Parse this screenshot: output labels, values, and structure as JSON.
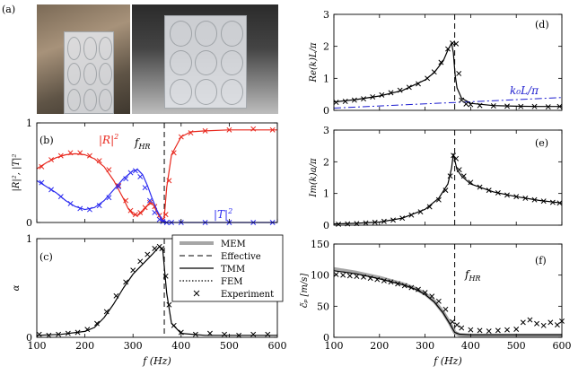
{
  "panel_labels": {
    "a": "(a)",
    "b": "(b)",
    "c": "(c)",
    "d": "(d)",
    "e": "(e)",
    "f": "(f)"
  },
  "photos": {
    "left": "photo-prototype-in-tube",
    "right": "photo-prototype-block"
  },
  "annotations": {
    "f_hr_main": "f",
    "f_hr_sub": "HR",
    "R2_main": "|R|",
    "R2_sup": "2",
    "T2_main": "|T|",
    "T2_sup": "2",
    "k0_label": "k₀L/π"
  },
  "legend": {
    "items": [
      {
        "label": "MEM",
        "style": "thick-gray"
      },
      {
        "label": "Effective",
        "style": "dashed"
      },
      {
        "label": "TMM",
        "style": "solid"
      },
      {
        "label": "FEM",
        "style": "dotted"
      },
      {
        "label": "Experiment",
        "style": "cross"
      }
    ]
  },
  "colors": {
    "red": "#e8281e",
    "blue": "#2b2bf0",
    "gray": "#a6a6a6",
    "black": "#000000",
    "k0_blue": "#1d1dcf"
  },
  "chart_data": [
    {
      "id": "b",
      "type": "line",
      "ylabel": "|R|², |T|²",
      "xlabel": "",
      "xlim": [
        100,
        600
      ],
      "ylim": [
        0,
        1
      ],
      "xticks": [
        100,
        200,
        300,
        400,
        500,
        600
      ],
      "yticks": [
        0,
        1
      ],
      "xticklabels": [
        "",
        "",
        "",
        "",
        "",
        ""
      ],
      "yticklabels": [
        "0",
        "1"
      ],
      "vline": 365,
      "series": [
        {
          "name": "|R|² model",
          "color": "red",
          "x": [
            100,
            120,
            140,
            160,
            180,
            200,
            220,
            240,
            260,
            280,
            290,
            300,
            310,
            320,
            330,
            340,
            350,
            360,
            365,
            370,
            380,
            400,
            420,
            450,
            500,
            550,
            600
          ],
          "y": [
            0.54,
            0.6,
            0.65,
            0.68,
            0.69,
            0.68,
            0.64,
            0.56,
            0.42,
            0.24,
            0.14,
            0.08,
            0.07,
            0.11,
            0.17,
            0.2,
            0.1,
            0.02,
            0.05,
            0.35,
            0.68,
            0.86,
            0.91,
            0.92,
            0.93,
            0.93,
            0.93
          ]
        },
        {
          "name": "|R|² experiment",
          "color": "red",
          "marker": "cross",
          "x": [
            110,
            130,
            150,
            170,
            190,
            210,
            230,
            250,
            270,
            285,
            295,
            305,
            315,
            325,
            335,
            345,
            355,
            362,
            368,
            375,
            385,
            400,
            420,
            450,
            500,
            550,
            590
          ],
          "y": [
            0.56,
            0.63,
            0.67,
            0.7,
            0.7,
            0.67,
            0.62,
            0.53,
            0.37,
            0.22,
            0.12,
            0.08,
            0.1,
            0.15,
            0.2,
            0.16,
            0.07,
            0.03,
            0.08,
            0.42,
            0.7,
            0.86,
            0.9,
            0.92,
            0.93,
            0.94,
            0.93
          ]
        },
        {
          "name": "|T|² model",
          "color": "blue",
          "x": [
            100,
            120,
            140,
            160,
            180,
            200,
            220,
            240,
            260,
            280,
            300,
            310,
            320,
            330,
            340,
            350,
            360,
            365,
            370,
            400,
            450,
            500,
            550,
            600
          ],
          "y": [
            0.42,
            0.36,
            0.3,
            0.22,
            0.16,
            0.13,
            0.15,
            0.22,
            0.33,
            0.44,
            0.52,
            0.53,
            0.48,
            0.37,
            0.24,
            0.12,
            0.03,
            0.01,
            0.0,
            0.0,
            0.0,
            0.0,
            0.0,
            0.0
          ]
        },
        {
          "name": "|T|² experiment",
          "color": "blue",
          "marker": "cross",
          "x": [
            110,
            130,
            150,
            170,
            190,
            210,
            230,
            250,
            270,
            285,
            295,
            305,
            315,
            325,
            335,
            345,
            355,
            362,
            370,
            380,
            400,
            450,
            500,
            550,
            590
          ],
          "y": [
            0.4,
            0.33,
            0.26,
            0.19,
            0.14,
            0.13,
            0.17,
            0.25,
            0.36,
            0.44,
            0.5,
            0.52,
            0.46,
            0.35,
            0.22,
            0.1,
            0.03,
            0.01,
            0.0,
            0.0,
            0.0,
            0.0,
            0.0,
            0.0,
            0.0
          ]
        }
      ]
    },
    {
      "id": "c",
      "type": "line",
      "ylabel": "α",
      "xlabel": "f (Hz)",
      "xlim": [
        100,
        600
      ],
      "ylim": [
        0,
        1
      ],
      "xticks": [
        100,
        200,
        300,
        400,
        500,
        600
      ],
      "yticks": [
        0,
        1
      ],
      "xticklabels": [
        "100",
        "200",
        "300",
        "400",
        "500",
        "600"
      ],
      "yticklabels": [
        "0",
        "1"
      ],
      "vline": 365,
      "series": [
        {
          "name": "model",
          "color": "black",
          "x": [
            100,
            150,
            200,
            220,
            240,
            260,
            280,
            300,
            320,
            340,
            355,
            362,
            370,
            380,
            400,
            450,
            500,
            550,
            600
          ],
          "y": [
            0.02,
            0.03,
            0.06,
            0.1,
            0.2,
            0.34,
            0.5,
            0.64,
            0.74,
            0.84,
            0.92,
            0.88,
            0.45,
            0.14,
            0.04,
            0.02,
            0.02,
            0.02,
            0.02
          ]
        },
        {
          "name": "experiment",
          "color": "black",
          "marker": "cross",
          "x": [
            105,
            125,
            145,
            165,
            185,
            205,
            225,
            245,
            265,
            285,
            300,
            315,
            330,
            345,
            355,
            360,
            368,
            375,
            385,
            400,
            430,
            460,
            490,
            520,
            550,
            580
          ],
          "y": [
            0.03,
            0.02,
            0.03,
            0.04,
            0.05,
            0.08,
            0.14,
            0.26,
            0.42,
            0.56,
            0.68,
            0.77,
            0.84,
            0.9,
            0.92,
            0.9,
            0.62,
            0.33,
            0.12,
            0.05,
            0.03,
            0.04,
            0.03,
            0.02,
            0.03,
            0.03
          ]
        }
      ]
    },
    {
      "id": "d",
      "type": "line",
      "ylabel": "Re(k)L/π",
      "xlabel": "",
      "xlim": [
        100,
        600
      ],
      "ylim": [
        0,
        3
      ],
      "xticks": [
        100,
        200,
        300,
        400,
        500,
        600
      ],
      "yticks": [
        0,
        1,
        2,
        3
      ],
      "xticklabels": [
        "",
        "",
        "",
        "",
        "",
        ""
      ],
      "yticklabels": [
        "0",
        "1",
        "2",
        "3"
      ],
      "vline": 365,
      "series": [
        {
          "name": "model",
          "color": "black",
          "x": [
            100,
            150,
            200,
            250,
            300,
            320,
            340,
            350,
            358,
            362,
            366,
            370,
            380,
            400,
            450,
            500,
            550,
            600
          ],
          "y": [
            0.26,
            0.34,
            0.45,
            0.62,
            0.95,
            1.18,
            1.55,
            1.88,
            2.1,
            1.8,
            1.1,
            0.7,
            0.38,
            0.22,
            0.15,
            0.13,
            0.12,
            0.12
          ]
        },
        {
          "name": "k0L/π",
          "color": "k0_blue",
          "style": "dashdot",
          "x": [
            100,
            600
          ],
          "y": [
            0.07,
            0.4
          ]
        },
        {
          "name": "experiment",
          "color": "black",
          "marker": "cross",
          "x": [
            105,
            125,
            145,
            165,
            185,
            205,
            225,
            245,
            265,
            285,
            305,
            320,
            335,
            350,
            360,
            368,
            374,
            380,
            390,
            400,
            420,
            450,
            480,
            510,
            540,
            570,
            595
          ],
          "y": [
            0.25,
            0.28,
            0.32,
            0.36,
            0.42,
            0.48,
            0.55,
            0.63,
            0.72,
            0.83,
            1.0,
            1.2,
            1.5,
            1.92,
            2.1,
            2.08,
            1.15,
            0.32,
            0.2,
            0.18,
            0.15,
            0.14,
            0.13,
            0.12,
            0.12,
            0.11,
            0.12
          ]
        }
      ]
    },
    {
      "id": "e",
      "type": "line",
      "ylabel": "Im(k)a/π",
      "xlabel": "",
      "xlim": [
        100,
        600
      ],
      "ylim": [
        0,
        3
      ],
      "xticks": [
        100,
        200,
        300,
        400,
        500,
        600
      ],
      "yticks": [
        0,
        1,
        2,
        3
      ],
      "xticklabels": [
        "",
        "",
        "",
        "",
        "",
        ""
      ],
      "yticklabels": [
        "0",
        "1",
        "2",
        "3"
      ],
      "vline": 365,
      "series": [
        {
          "name": "model",
          "color": "black",
          "x": [
            100,
            150,
            200,
            250,
            300,
            330,
            350,
            358,
            362,
            366,
            370,
            380,
            400,
            450,
            500,
            550,
            600
          ],
          "y": [
            0.04,
            0.06,
            0.1,
            0.22,
            0.5,
            0.85,
            1.3,
            1.8,
            2.25,
            2.0,
            1.75,
            1.55,
            1.3,
            1.05,
            0.9,
            0.78,
            0.7
          ]
        },
        {
          "name": "experiment",
          "color": "black",
          "marker": "cross",
          "x": [
            110,
            130,
            150,
            170,
            190,
            210,
            230,
            250,
            270,
            290,
            310,
            330,
            345,
            355,
            362,
            368,
            375,
            385,
            400,
            420,
            440,
            460,
            480,
            500,
            520,
            540,
            560,
            580,
            595
          ],
          "y": [
            0.03,
            0.04,
            0.05,
            0.07,
            0.09,
            0.12,
            0.16,
            0.22,
            0.32,
            0.42,
            0.58,
            0.8,
            1.1,
            1.55,
            2.2,
            2.1,
            1.75,
            1.55,
            1.35,
            1.2,
            1.1,
            1.02,
            0.95,
            0.9,
            0.85,
            0.8,
            0.76,
            0.72,
            0.7
          ]
        }
      ]
    },
    {
      "id": "f",
      "type": "line",
      "ylabel": "c̃ₚ [m/s]",
      "xlabel": "f (Hz)",
      "xlim": [
        100,
        600
      ],
      "ylim": [
        0,
        150
      ],
      "xticks": [
        100,
        200,
        300,
        400,
        500,
        600
      ],
      "yticks": [
        0,
        50,
        100,
        150
      ],
      "xticklabels": [
        "100",
        "200",
        "300",
        "400",
        "500",
        "600"
      ],
      "yticklabels": [
        "0",
        "50",
        "100",
        "150"
      ],
      "vline": 365,
      "series": [
        {
          "name": "MEM",
          "color": "gray",
          "style": "thick",
          "x": [
            100,
            150,
            200,
            250,
            280,
            300,
            320,
            340,
            355,
            365,
            375,
            400,
            450,
            500,
            600
          ],
          "y": [
            110,
            104,
            96,
            86,
            78,
            70,
            58,
            40,
            22,
            8,
            4,
            3,
            3,
            3,
            3
          ]
        },
        {
          "name": "model",
          "color": "black",
          "x": [
            100,
            150,
            200,
            250,
            280,
            300,
            320,
            340,
            355,
            365,
            375,
            400,
            450,
            500,
            600
          ],
          "y": [
            107,
            102,
            94,
            85,
            77,
            69,
            57,
            39,
            21,
            8,
            5,
            4,
            4,
            4,
            4
          ]
        },
        {
          "name": "experiment",
          "color": "black",
          "marker": "cross",
          "x": [
            105,
            120,
            135,
            150,
            165,
            180,
            195,
            210,
            225,
            240,
            255,
            270,
            285,
            300,
            315,
            330,
            345,
            360,
            370,
            380,
            400,
            420,
            440,
            460,
            480,
            500,
            515,
            530,
            545,
            560,
            575,
            590,
            600
          ],
          "y": [
            101,
            100,
            99,
            98,
            97,
            95,
            93,
            91,
            89,
            86,
            83,
            80,
            77,
            72,
            66,
            58,
            45,
            25,
            20,
            15,
            12,
            11,
            10,
            11,
            12,
            13,
            24,
            28,
            22,
            19,
            24,
            20,
            26
          ]
        }
      ]
    }
  ]
}
